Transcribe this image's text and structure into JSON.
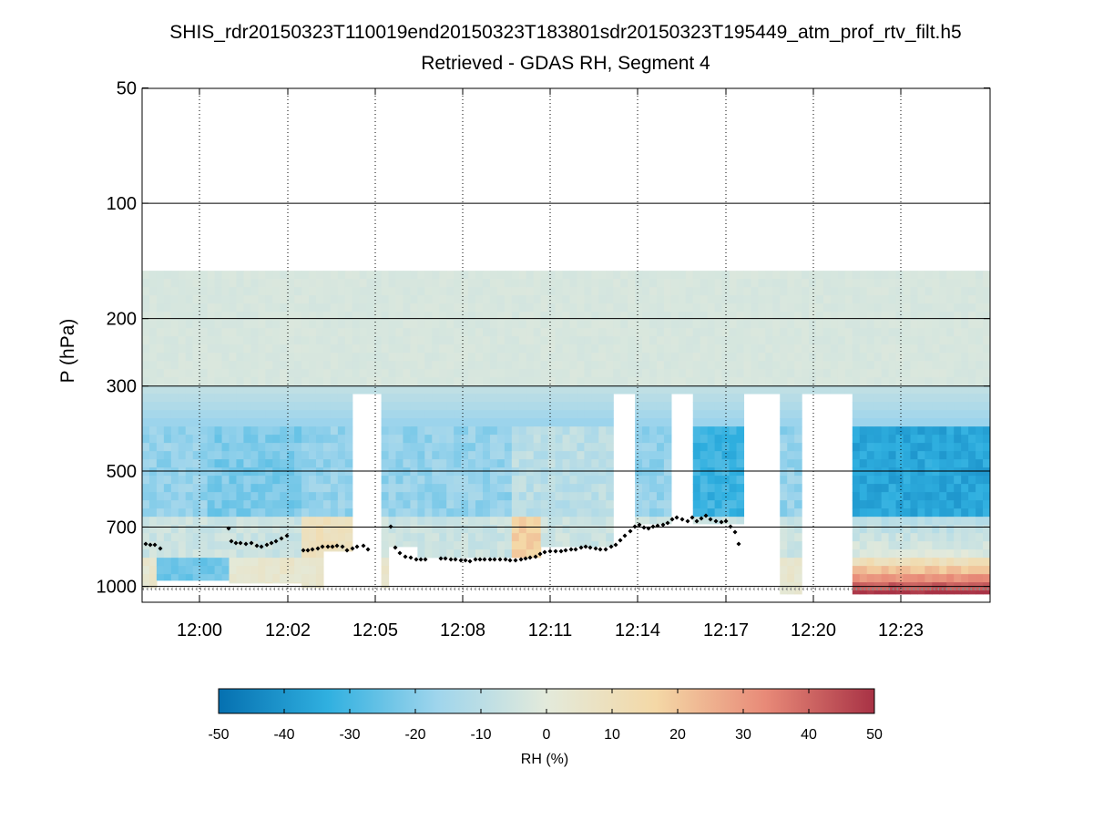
{
  "chart_data": {
    "type": "heatmap",
    "title": "SHIS_rdr20150323T110019end20150323T183801sdr20150323T195449_atm_prof_rtv_filt.h5",
    "subtitle": "Retrieved - GDAS RH, Segment 4",
    "ylabel": "P (hPa)",
    "y_scale": "log",
    "y_reversed": true,
    "ylim": [
      50,
      1000
    ],
    "y_ticks": [
      50,
      100,
      200,
      300,
      500,
      700,
      1000
    ],
    "x_ticks": [
      "12:00",
      "12:02",
      "12:05",
      "12:08",
      "12:11",
      "12:14",
      "12:17",
      "12:20",
      "12:23"
    ],
    "grid": true,
    "colorbar": {
      "label": "RH (%)",
      "range": [
        -50,
        50
      ],
      "ticks": [
        -50,
        -40,
        -30,
        -20,
        -10,
        0,
        10,
        20,
        30,
        40,
        50
      ],
      "colors": [
        "#0570b0",
        "#30b0e0",
        "#9fd5ec",
        "#e3eadb",
        "#f4d8a6",
        "#e88a78",
        "#a83245"
      ]
    },
    "overlays": [
      {
        "name": "cloud-top",
        "marker": "diamond",
        "color": "#000000"
      },
      {
        "name": "surface",
        "marker": "diamond",
        "color": "#888888"
      }
    ]
  }
}
